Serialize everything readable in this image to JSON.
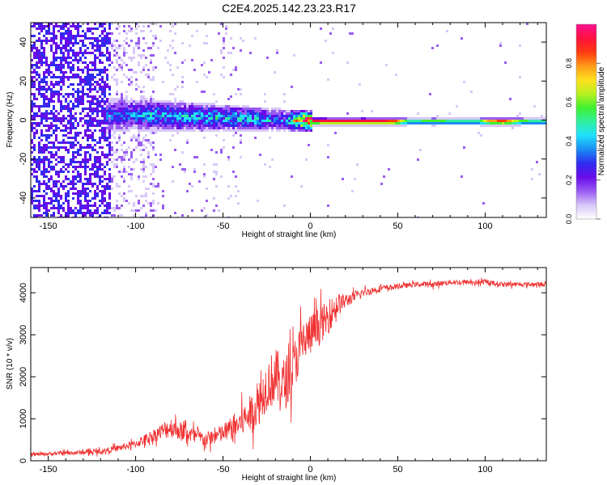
{
  "title": "C2E4.2025.142.23.23.R17",
  "chart_data": [
    {
      "type": "heatmap",
      "xlabel": "Height of straight line (km)",
      "ylabel": "Frequency (Hz)",
      "xlim": [
        -160,
        135
      ],
      "ylim": [
        -50,
        50
      ],
      "xticks": [
        -150,
        -100,
        -50,
        0,
        50,
        100
      ],
      "yticks": [
        -40,
        -20,
        0,
        20,
        40
      ],
      "grid": false,
      "colorbar": {
        "label": "Normalized spectral amplitude",
        "range": [
          0,
          1
        ],
        "ticks": [
          0.0,
          0.2,
          0.4,
          0.6,
          0.8
        ],
        "colors": [
          "#ffffff",
          "#d8c8f8",
          "#9a5cf2",
          "#6a0ce8",
          "#2f2cf0",
          "#1a8cf2",
          "#20e0ff",
          "#30f0a0",
          "#40f030",
          "#b8f020",
          "#ffe020",
          "#ff9a18",
          "#ff3a10",
          "#ff1040",
          "#ff1090"
        ]
      },
      "ridge": [
        {
          "x": -115,
          "f": 3.0,
          "a": 0.3
        },
        {
          "x": -100,
          "f": 3.2,
          "a": 0.35
        },
        {
          "x": -90,
          "f": 3.0,
          "a": 0.38
        },
        {
          "x": -75,
          "f": 2.5,
          "a": 0.4
        },
        {
          "x": -60,
          "f": 2.0,
          "a": 0.4
        },
        {
          "x": -45,
          "f": 1.5,
          "a": 0.42
        },
        {
          "x": -30,
          "f": 1.0,
          "a": 0.42
        },
        {
          "x": -15,
          "f": 0.5,
          "a": 0.3
        },
        {
          "x": -5,
          "f": 0.2,
          "a": 0.95
        },
        {
          "x": 10,
          "f": 0.0,
          "a": 0.98
        },
        {
          "x": 30,
          "f": 0.0,
          "a": 0.99
        },
        {
          "x": 48,
          "f": 0.0,
          "a": 0.95
        },
        {
          "x": 55,
          "f": 0.0,
          "a": 0.55
        },
        {
          "x": 70,
          "f": 0.0,
          "a": 0.6
        },
        {
          "x": 85,
          "f": 0.0,
          "a": 0.55
        },
        {
          "x": 95,
          "f": 0.0,
          "a": 0.5
        },
        {
          "x": 100,
          "f": 0.0,
          "a": 0.8
        },
        {
          "x": 110,
          "f": 0.0,
          "a": 0.95
        },
        {
          "x": 120,
          "f": 0.0,
          "a": 0.6
        },
        {
          "x": 135,
          "f": 0.0,
          "a": 0.5
        }
      ]
    },
    {
      "type": "line",
      "xlabel": "Height of straight line (km)",
      "ylabel": "SNR (10 * v/v)",
      "xlim": [
        -160,
        135
      ],
      "ylim": [
        0,
        4600
      ],
      "xticks": [
        -150,
        -100,
        -50,
        0,
        50,
        100
      ],
      "yticks": [
        0,
        1000,
        2000,
        3000,
        4000
      ],
      "grid": false,
      "color": "#f03030",
      "series": [
        {
          "x": [
            -160,
            -140,
            -120,
            -110,
            -100,
            -90,
            -80,
            -70,
            -60,
            -50,
            -40,
            -30,
            -25,
            -20,
            -15,
            -10,
            -5,
            0,
            5,
            10,
            15,
            20,
            25,
            30,
            40,
            50,
            60,
            70,
            80,
            90,
            100,
            110,
            120,
            135
          ],
          "values": [
            150,
            180,
            220,
            300,
            400,
            600,
            800,
            650,
            500,
            650,
            900,
            1300,
            1800,
            2000,
            1800,
            2200,
            2800,
            3000,
            3200,
            3400,
            3700,
            3800,
            3900,
            4000,
            4100,
            4150,
            4200,
            4200,
            4250,
            4250,
            4250,
            4200,
            4200,
            4200
          ],
          "spread": [
            80,
            100,
            120,
            150,
            200,
            300,
            500,
            400,
            350,
            450,
            700,
            1000,
            1200,
            1400,
            1300,
            1200,
            1100,
            1000,
            900,
            800,
            600,
            350,
            250,
            200,
            150,
            120,
            120,
            130,
            120,
            120,
            120,
            120,
            110,
            110
          ]
        }
      ]
    }
  ]
}
